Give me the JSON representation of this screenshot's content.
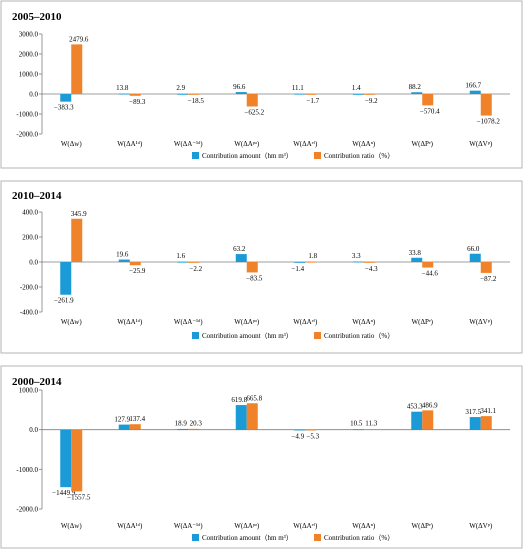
{
  "colors": {
    "amount": "#1a9ad6",
    "ratio": "#f0822a"
  },
  "legend": {
    "amount": "Contribution amount（hm m³）",
    "ratio": "Contribution ratio（%）"
  },
  "chart_data": [
    {
      "type": "bar",
      "title": "2005–2010",
      "categories": [
        "W(Δw)",
        "W(ΔA¹ᵈ)",
        "W(ΔA⁻¹ᵈ)",
        "W(ΔAᵖᵃ)",
        "W(ΔAᵉᶠ)",
        "W(ΔAⁿ)",
        "W(ΔPᵉ)",
        "W(ΔVᵖ)"
      ],
      "ylim": [
        -2000,
        3000
      ],
      "yticks": [
        -2000,
        -1000,
        0,
        1000,
        2000,
        3000
      ],
      "tick_labels": [
        "-2000.0",
        "-1000.0",
        "0.0",
        "1000.0",
        "2000.0",
        "3000.0"
      ],
      "series": [
        {
          "name": "Contribution amount（hm m³）",
          "values": [
            -383.3,
            13.8,
            2.9,
            96.6,
            11.1,
            1.4,
            88.2,
            166.7
          ],
          "labels": [
            "−383.3",
            "13.8",
            "2.9",
            "96.6",
            "11.1",
            "1.4",
            "88.2",
            "166.7"
          ]
        },
        {
          "name": "Contribution ratio（%）",
          "values": [
            2479.6,
            -89.3,
            -18.5,
            -625.2,
            -1.7,
            -9.2,
            -570.4,
            -1078.2
          ],
          "labels": [
            "2479.6",
            "−89.3",
            "−18.5",
            "−625.2",
            "−1.7",
            "−9.2",
            "−570.4",
            "−1078.2"
          ]
        }
      ]
    },
    {
      "type": "bar",
      "title": "2010–2014",
      "categories": [
        "W(Δw)",
        "W(ΔA¹ᵈ)",
        "W(ΔA⁻¹ᵈ)",
        "W(ΔAᵖᵃ)",
        "W(ΔAᵉᶠ)",
        "W(ΔAⁿ)",
        "W(ΔPᵉ)",
        "W(ΔVᵖ)"
      ],
      "ylim": [
        -400,
        400
      ],
      "yticks": [
        -400,
        -200,
        0,
        200,
        400
      ],
      "tick_labels": [
        "-400.0",
        "-200.0",
        "0.0",
        "200.0",
        "400.0"
      ],
      "series": [
        {
          "name": "Contribution amount（hm m³）",
          "values": [
            -261.9,
            19.6,
            1.6,
            63.2,
            -1.4,
            3.3,
            33.8,
            66.0
          ],
          "labels": [
            "−261.9",
            "19.6",
            "1.6",
            "63.2",
            "−1.4",
            "3.3",
            "33.8",
            "66.0"
          ]
        },
        {
          "name": "Contribution ratio（%）",
          "values": [
            345.9,
            -25.9,
            -2.2,
            -83.5,
            1.8,
            -4.3,
            -44.6,
            -87.2
          ],
          "labels": [
            "345.9",
            "−25.9",
            "−2.2",
            "−83.5",
            "1.8",
            "−4.3",
            "−44.6",
            "−87.2"
          ]
        }
      ]
    },
    {
      "type": "bar",
      "title": "2000–2014",
      "categories": [
        "W(Δw)",
        "W(ΔA¹ᵈ)",
        "W(ΔA⁻¹ᵈ)",
        "W(ΔAᵖᵃ)",
        "W(ΔAᵉᶠ)",
        "W(ΔAⁿ)",
        "W(ΔPᵉ)",
        "W(ΔVᵖ)"
      ],
      "ylim": [
        -2000,
        1000
      ],
      "yticks": [
        -2000,
        -1000,
        0,
        1000
      ],
      "tick_labels": [
        "-2000.0",
        "-1000.0",
        "0.0",
        "1000.0"
      ],
      "series": [
        {
          "name": "Contribution amount（hm m³）",
          "values": [
            -1449.9,
            127.9,
            18.9,
            619.8,
            -4.9,
            10.5,
            453.3,
            317.5
          ],
          "labels": [
            "−1449.9",
            "127.9",
            "18.9",
            "619.8",
            "−4.9",
            "10.5",
            "453.3",
            "317.5"
          ]
        },
        {
          "name": "Contribution ratio（%）",
          "values": [
            -1557.5,
            137.4,
            20.3,
            665.8,
            -5.3,
            11.3,
            486.9,
            341.1
          ],
          "labels": [
            "−1557.5",
            "137.4",
            "20.3",
            "665.8",
            "−5.3",
            "11.3",
            "486.9",
            "341.1"
          ]
        }
      ]
    }
  ]
}
